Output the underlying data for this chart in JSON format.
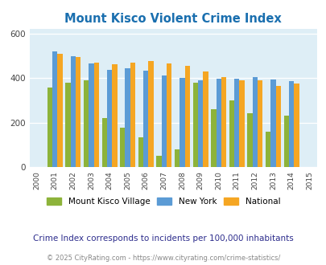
{
  "title": "Mount Kisco Violent Crime Index",
  "years": [
    2000,
    2001,
    2002,
    2003,
    2004,
    2005,
    2006,
    2007,
    2008,
    2009,
    2010,
    2011,
    2012,
    2013,
    2014,
    2015
  ],
  "mount_kisco": [
    null,
    358,
    380,
    390,
    220,
    175,
    135,
    50,
    80,
    380,
    260,
    300,
    242,
    158,
    232,
    null
  ],
  "new_york": [
    null,
    520,
    500,
    465,
    438,
    445,
    435,
    410,
    400,
    390,
    398,
    398,
    405,
    393,
    385,
    null
  ],
  "national": [
    null,
    510,
    493,
    470,
    462,
    470,
    475,
    465,
    455,
    428,
    403,
    390,
    390,
    365,
    375,
    null
  ],
  "bar_color_kisco": "#8db33a",
  "bar_color_ny": "#5b9bd5",
  "bar_color_national": "#f5a623",
  "plot_bg": "#deeef6",
  "ylim": [
    0,
    620
  ],
  "yticks": [
    0,
    200,
    400,
    600
  ],
  "legend_labels": [
    "Mount Kisco Village",
    "New York",
    "National"
  ],
  "note": "Crime Index corresponds to incidents per 100,000 inhabitants",
  "credit": "© 2025 CityRating.com - https://www.cityrating.com/crime-statistics/",
  "title_color": "#1a6faf",
  "note_color": "#2c2c8c",
  "credit_color": "#888888"
}
